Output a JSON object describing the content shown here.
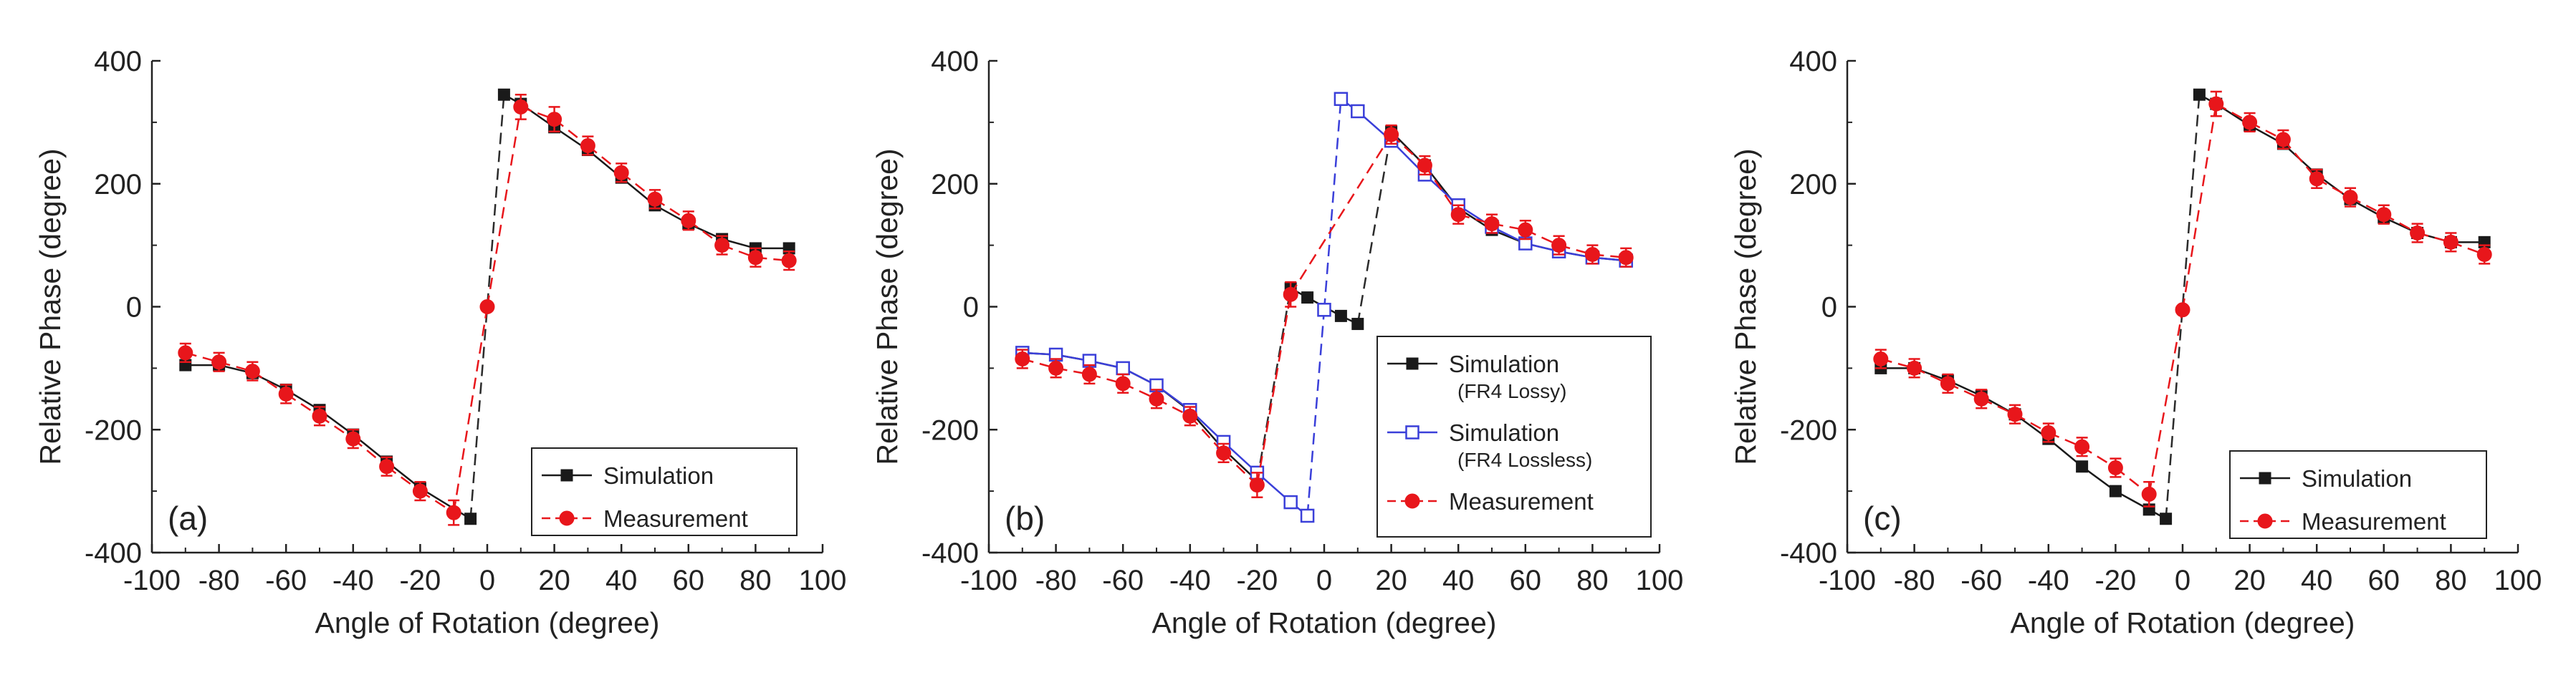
{
  "chart_data": [
    {
      "panel": "(a)",
      "type": "line",
      "xlabel": "Angle of Rotation (degree)",
      "ylabel": "Relative Phase (degree)",
      "xlim": [
        -100,
        100
      ],
      "ylim": [
        -400,
        400
      ],
      "xticks": [
        -100,
        -80,
        -60,
        -40,
        -20,
        0,
        20,
        40,
        60,
        80,
        100
      ],
      "yticks": [
        -400,
        -200,
        0,
        200,
        400
      ],
      "legend_position": "bottom-right",
      "series": [
        {
          "name": "Simulation",
          "color": "#1a1a1a",
          "marker": "square-filled",
          "style": "solid",
          "x": [
            -90,
            -80,
            -70,
            -60,
            -50,
            -40,
            -30,
            -20,
            -5,
            5,
            10,
            20,
            30,
            40,
            50,
            60,
            70,
            80,
            90
          ],
          "y": [
            -95,
            -95,
            -108,
            -135,
            -168,
            -208,
            -252,
            -295,
            -345,
            345,
            330,
            292,
            255,
            210,
            165,
            135,
            110,
            95,
            95
          ]
        },
        {
          "name": "Measurement",
          "color": "#e8161b",
          "marker": "circle-filled",
          "style": "dashed",
          "x": [
            -90,
            -80,
            -70,
            -60,
            -50,
            -40,
            -30,
            -20,
            -10,
            0,
            10,
            20,
            30,
            40,
            50,
            60,
            70,
            80,
            90
          ],
          "y": [
            -75,
            -90,
            -105,
            -142,
            -178,
            -215,
            -260,
            -300,
            -335,
            0,
            325,
            305,
            262,
            218,
            175,
            140,
            100,
            80,
            75
          ],
          "error": [
            15,
            15,
            15,
            15,
            15,
            15,
            15,
            15,
            20,
            0,
            20,
            20,
            15,
            15,
            15,
            15,
            15,
            15,
            15
          ]
        }
      ]
    },
    {
      "panel": "(b)",
      "type": "line",
      "xlabel": "Angle of Rotation (degree)",
      "ylabel": "Relative Phase (degree)",
      "xlim": [
        -100,
        100
      ],
      "ylim": [
        -400,
        400
      ],
      "xticks": [
        -100,
        -80,
        -60,
        -40,
        -20,
        0,
        20,
        40,
        60,
        80,
        100
      ],
      "yticks": [
        -400,
        -200,
        0,
        200,
        400
      ],
      "legend_position": "bottom-right",
      "series": [
        {
          "name": "Simulation",
          "subname": "(FR4 Lossy)",
          "color": "#1a1a1a",
          "marker": "square-filled",
          "style": "solid",
          "x": [
            -90,
            -80,
            -70,
            -60,
            -50,
            -40,
            -30,
            -20,
            -10,
            -5,
            5,
            10,
            20,
            30,
            40,
            50,
            60,
            70,
            80,
            90
          ],
          "y": [
            -75,
            -78,
            -88,
            -100,
            -128,
            -170,
            -232,
            -283,
            30,
            15,
            -15,
            -28,
            285,
            230,
            160,
            125,
            103,
            90,
            80,
            75
          ]
        },
        {
          "name": "Simulation",
          "subname": "(FR4 Lossless)",
          "color": "#3a3fd9",
          "marker": "square-open",
          "style": "solid",
          "x": [
            -90,
            -80,
            -70,
            -60,
            -50,
            -40,
            -30,
            -20,
            -10,
            -5,
            0,
            5,
            10,
            20,
            30,
            40,
            50,
            60,
            70,
            80,
            90
          ],
          "y": [
            -75,
            -78,
            -88,
            -100,
            -128,
            -168,
            -220,
            -270,
            -318,
            -340,
            -5,
            338,
            318,
            270,
            215,
            165,
            130,
            103,
            90,
            80,
            75
          ]
        },
        {
          "name": "Measurement",
          "color": "#e8161b",
          "marker": "circle-filled",
          "style": "dashed",
          "x": [
            -90,
            -80,
            -70,
            -60,
            -50,
            -40,
            -30,
            -20,
            -10,
            20,
            30,
            40,
            50,
            60,
            70,
            80,
            90
          ],
          "y": [
            -85,
            -100,
            -110,
            -125,
            -150,
            -178,
            -238,
            -290,
            20,
            280,
            230,
            150,
            135,
            125,
            100,
            85,
            80
          ],
          "error": [
            15,
            15,
            15,
            15,
            15,
            15,
            15,
            20,
            20,
            15,
            15,
            15,
            15,
            15,
            15,
            15,
            15
          ]
        }
      ]
    },
    {
      "panel": "(c)",
      "type": "line",
      "xlabel": "Angle of Rotation (degree)",
      "ylabel": "Relative Phase (degree)",
      "xlim": [
        -100,
        100
      ],
      "ylim": [
        -400,
        400
      ],
      "xticks": [
        -100,
        -80,
        -60,
        -40,
        -20,
        0,
        20,
        40,
        60,
        80,
        100
      ],
      "yticks": [
        -400,
        -200,
        0,
        200,
        400
      ],
      "legend_position": "bottom-right",
      "series": [
        {
          "name": "Simulation",
          "color": "#1a1a1a",
          "marker": "square-filled",
          "style": "solid",
          "x": [
            -90,
            -80,
            -70,
            -60,
            -50,
            -40,
            -30,
            -20,
            -10,
            -5,
            5,
            10,
            20,
            30,
            40,
            50,
            60,
            70,
            80,
            90
          ],
          "y": [
            -100,
            -100,
            -120,
            -145,
            -175,
            -215,
            -260,
            -300,
            -330,
            -345,
            345,
            330,
            295,
            265,
            215,
            175,
            145,
            120,
            105,
            105
          ]
        },
        {
          "name": "Measurement",
          "color": "#e8161b",
          "marker": "circle-filled",
          "style": "dashed",
          "x": [
            -90,
            -80,
            -70,
            -60,
            -50,
            -40,
            -30,
            -20,
            -10,
            0,
            10,
            20,
            30,
            40,
            50,
            60,
            70,
            80,
            90
          ],
          "y": [
            -85,
            -100,
            -125,
            -150,
            -175,
            -205,
            -228,
            -262,
            -305,
            -5,
            330,
            300,
            272,
            208,
            178,
            150,
            120,
            105,
            85
          ],
          "error": [
            15,
            15,
            15,
            15,
            15,
            15,
            15,
            15,
            20,
            0,
            20,
            15,
            15,
            15,
            15,
            15,
            15,
            15,
            15
          ]
        }
      ]
    }
  ]
}
